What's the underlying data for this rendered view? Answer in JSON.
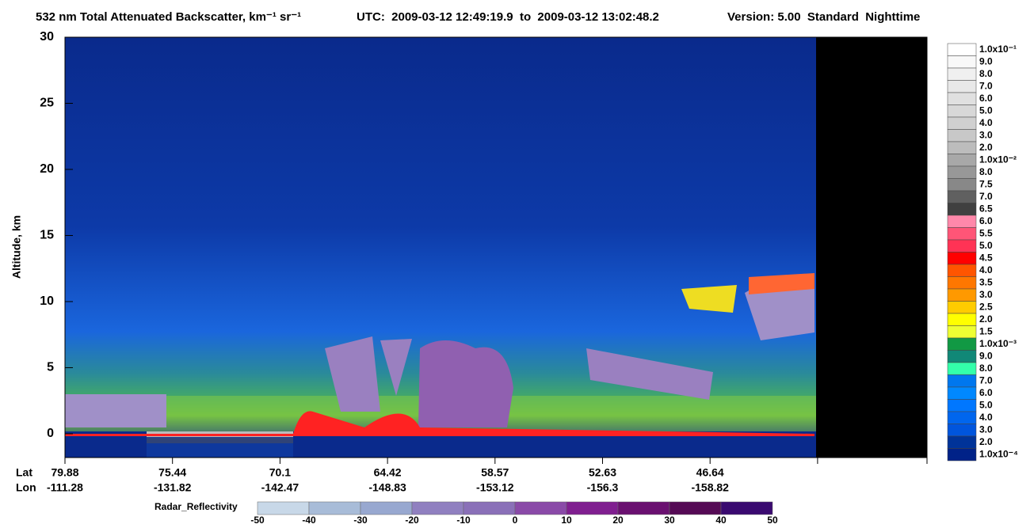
{
  "chart_data": {
    "type": "heatmap",
    "title": "532 nm Total Attenuated Backscatter, km⁻¹ sr⁻¹",
    "time_range": "UTC:  2009-03-12 12:49:19.9  to  2009-03-12 13:02:48.2",
    "version": "Version: 5.00  Standard  Nighttime",
    "y_label": "Altitude, km",
    "ylim": [
      -1.8,
      30
    ],
    "yticks": [
      0,
      5,
      10,
      15,
      20,
      25,
      30
    ],
    "lat_label": "Lat",
    "lon_label": "Lon",
    "xticks": [
      {
        "lat": 79.88,
        "lon": -111.28
      },
      {
        "lat": 75.44,
        "lon": -131.82
      },
      {
        "lat": 70.1,
        "lon": -142.47
      },
      {
        "lat": 64.42,
        "lon": -148.83
      },
      {
        "lat": 58.57,
        "lon": -153.12
      },
      {
        "lat": 52.63,
        "lon": -156.3
      },
      {
        "lat": 46.64,
        "lon": -158.82
      }
    ],
    "colorbar": {
      "labels": [
        "1.0x10⁻¹",
        "9.0",
        "8.0",
        "7.0",
        "6.0",
        "5.0",
        "4.0",
        "3.0",
        "2.0",
        "1.0x10⁻²",
        "8.0",
        "7.5",
        "7.0",
        "6.5",
        "6.0",
        "5.5",
        "5.0",
        "4.5",
        "4.0",
        "3.5",
        "3.0",
        "2.5",
        "2.0",
        "1.5",
        "1.0x10⁻³",
        "9.0",
        "8.0",
        "7.0",
        "6.0",
        "5.0",
        "4.0",
        "3.0",
        "2.0",
        "1.0x10⁻⁴"
      ],
      "colors": [
        "#ffffff",
        "#f8f8f8",
        "#f0f0f0",
        "#e8e8e8",
        "#e0e0e0",
        "#d8d8d8",
        "#d0d0d0",
        "#c8c8c8",
        "#bcbcbc",
        "#a8a8a8",
        "#989898",
        "#888888",
        "#606060",
        "#404040",
        "#ff88aa",
        "#ff5577",
        "#ff3355",
        "#ff0000",
        "#ff5500",
        "#ff7700",
        "#ff9900",
        "#ffcc00",
        "#ffff00",
        "#eeff33",
        "#119944",
        "#118877",
        "#33ffaa",
        "#0077ee",
        "#0088ff",
        "#0077ff",
        "#0066ee",
        "#0055dd",
        "#003399",
        "#002288"
      ]
    },
    "radar": {
      "label": "Radar_Reflectivity",
      "ticks": [
        -50,
        -40,
        -30,
        -20,
        -10,
        0,
        10,
        20,
        30,
        40,
        50
      ],
      "colors": [
        "#c8d8e8",
        "#a8bcd8",
        "#98a8d0",
        "#9080c0",
        "#8a70b8",
        "#8a4aa8",
        "#801f90",
        "#6a1070",
        "#550a55",
        "#3a0a70"
      ]
    }
  }
}
